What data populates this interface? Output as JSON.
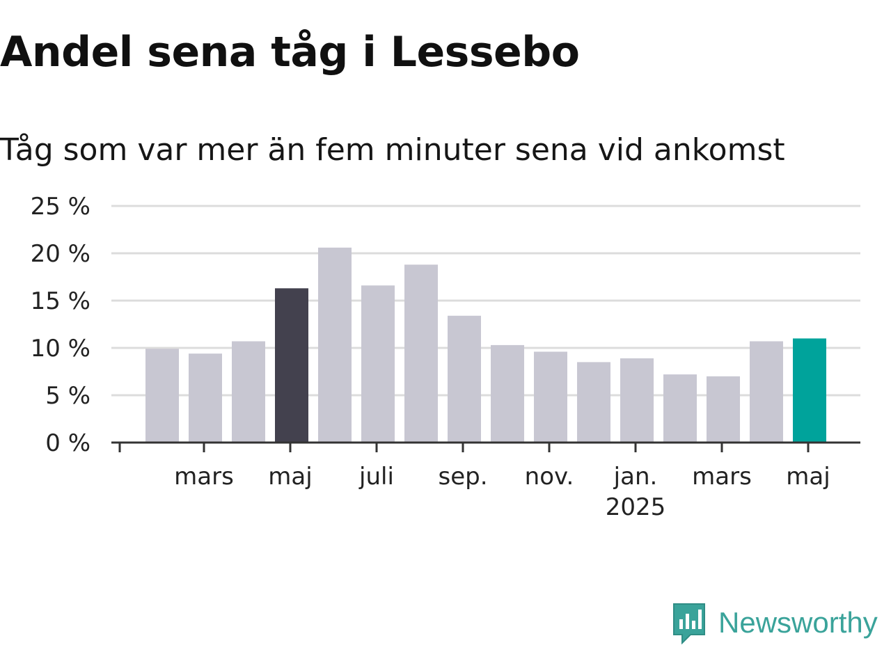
{
  "chart_data": {
    "type": "bar",
    "title": "Andel sena tåg i Lessebo",
    "subtitle": "Tåg som var mer än fem minuter sena vid ankomst",
    "categories": [
      "2024-02",
      "2024-03",
      "2024-04",
      "2024-05",
      "2024-06",
      "2024-07",
      "2024-08",
      "2024-09",
      "2024-10",
      "2024-11",
      "2024-12",
      "2025-01",
      "2025-02",
      "2025-03",
      "2025-04",
      "2025-05"
    ],
    "values": [
      9.9,
      9.4,
      10.7,
      16.3,
      20.6,
      16.6,
      18.8,
      13.4,
      10.3,
      9.6,
      8.5,
      8.9,
      7.2,
      7.0,
      10.7,
      11.0
    ],
    "highlight": {
      "2024-05": "#43414e",
      "2025-05": "#00a39b"
    },
    "default_color": "#c8c7d2",
    "ylim": [
      0,
      25
    ],
    "yticks": [
      0,
      5,
      10,
      15,
      20,
      25
    ],
    "ytick_labels": [
      "0 %",
      "5 %",
      "10 %",
      "15 %",
      "20 %",
      "25 %"
    ],
    "xticks": [
      {
        "at": "2024-03",
        "label": "mars"
      },
      {
        "at": "2024-05",
        "label": "maj"
      },
      {
        "at": "2024-07",
        "label": "juli"
      },
      {
        "at": "2024-09",
        "label": "sep."
      },
      {
        "at": "2024-11",
        "label": "nov."
      },
      {
        "at": "2025-01",
        "label": "jan.",
        "sublabel": "2025"
      },
      {
        "at": "2025-03",
        "label": "mars"
      },
      {
        "at": "2025-05",
        "label": "maj"
      }
    ],
    "grid": true,
    "xlabel": "",
    "ylabel": ""
  },
  "brand": {
    "name": "Newsworthy",
    "color": "#3aa39a",
    "icon": "newsworthy-logo-icon"
  }
}
